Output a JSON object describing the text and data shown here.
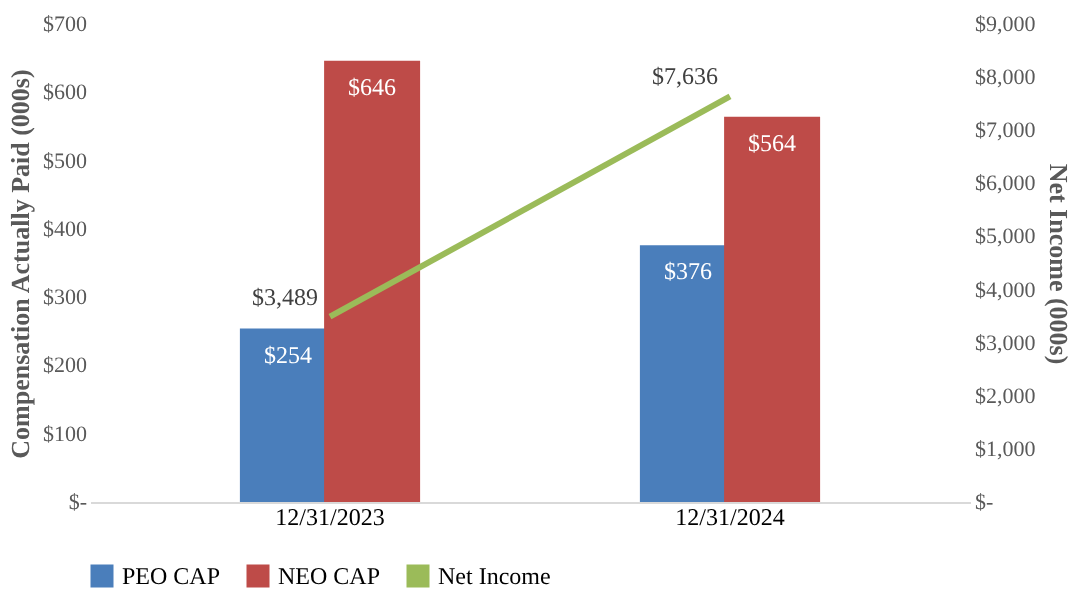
{
  "chart_data": {
    "type": "bar",
    "ylabel": "Compensation Actually Paid (000s)",
    "y2label": "Net Income (000s)",
    "categories": [
      "12/31/2023",
      "12/31/2024"
    ],
    "series": [
      {
        "name": "PEO CAP",
        "color": "#4a7ebb",
        "values": [
          254,
          376
        ],
        "value_labels": [
          "$254",
          "$376"
        ]
      },
      {
        "name": "NEO CAP",
        "color": "#be4b48",
        "values": [
          646,
          564
        ],
        "value_labels": [
          "$646",
          "$564"
        ]
      },
      {
        "name": "Net Income",
        "type": "line",
        "axis": "y2",
        "color": "#9bbb59",
        "values": [
          3489,
          7636
        ],
        "value_labels": [
          "$3,489",
          "$7,636"
        ]
      }
    ],
    "ylim": [
      0,
      700
    ],
    "yticks": [
      {
        "value": 0,
        "label": "$-"
      },
      {
        "value": 100,
        "label": "$100"
      },
      {
        "value": 200,
        "label": "$200"
      },
      {
        "value": 300,
        "label": "$300"
      },
      {
        "value": 400,
        "label": "$400"
      },
      {
        "value": 500,
        "label": "$500"
      },
      {
        "value": 600,
        "label": "$600"
      },
      {
        "value": 700,
        "label": "$700"
      }
    ],
    "y2lim": [
      0,
      9000
    ],
    "y2ticks": [
      {
        "value": 0,
        "label": "$-"
      },
      {
        "value": 1000,
        "label": "$1,000"
      },
      {
        "value": 2000,
        "label": "$2,000"
      },
      {
        "value": 3000,
        "label": "$3,000"
      },
      {
        "value": 4000,
        "label": "$4,000"
      },
      {
        "value": 5000,
        "label": "$5,000"
      },
      {
        "value": 6000,
        "label": "$6,000"
      },
      {
        "value": 7000,
        "label": "$7,000"
      },
      {
        "value": 8000,
        "label": "$8,000"
      },
      {
        "value": 9000,
        "label": "$9,000"
      }
    ],
    "grid": false,
    "legend": "bottom"
  }
}
